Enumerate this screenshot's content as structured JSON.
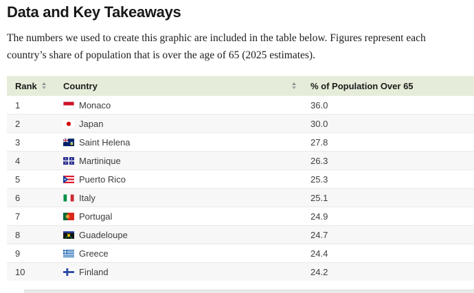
{
  "page": {
    "title": "Data and Key Takeaways",
    "description": "The numbers we used to create this graphic are included in the table below. Figures represent each country’s share of population that is over the age of 65 (2025 estimates)."
  },
  "table": {
    "columns": [
      {
        "label": "Rank",
        "sortable": true,
        "sort_icon": "up-down-triangles"
      },
      {
        "label": "Country",
        "sortable": true,
        "sort_icon": "up-down-triangles"
      },
      {
        "label": "% of Population Over 65",
        "sortable": false
      }
    ],
    "rows": [
      {
        "rank": "1",
        "country": "Monaco",
        "flag": "mc",
        "value": "36.0"
      },
      {
        "rank": "2",
        "country": "Japan",
        "flag": "jp",
        "value": "30.0"
      },
      {
        "rank": "3",
        "country": "Saint Helena",
        "flag": "sh",
        "value": "27.8"
      },
      {
        "rank": "4",
        "country": "Martinique",
        "flag": "mq",
        "value": "26.3"
      },
      {
        "rank": "5",
        "country": "Puerto Rico",
        "flag": "pr",
        "value": "25.3"
      },
      {
        "rank": "6",
        "country": "Italy",
        "flag": "it",
        "value": "25.1"
      },
      {
        "rank": "7",
        "country": "Portugal",
        "flag": "pt",
        "value": "24.9"
      },
      {
        "rank": "8",
        "country": "Guadeloupe",
        "flag": "gp",
        "value": "24.7"
      },
      {
        "rank": "9",
        "country": "Greece",
        "flag": "gr",
        "value": "24.4"
      },
      {
        "rank": "10",
        "country": "Finland",
        "flag": "fi",
        "value": "24.2"
      }
    ]
  },
  "colors": {
    "header_bg": "#e5ecd9",
    "alt_row_bg": "#f7f7f7",
    "row_border": "#e9e9e9",
    "heading_text": "#181818",
    "cell_text": "#3c3c3c",
    "sort_arrow": "#8f8f8f",
    "bottom_strip": "#e9e9e9"
  }
}
